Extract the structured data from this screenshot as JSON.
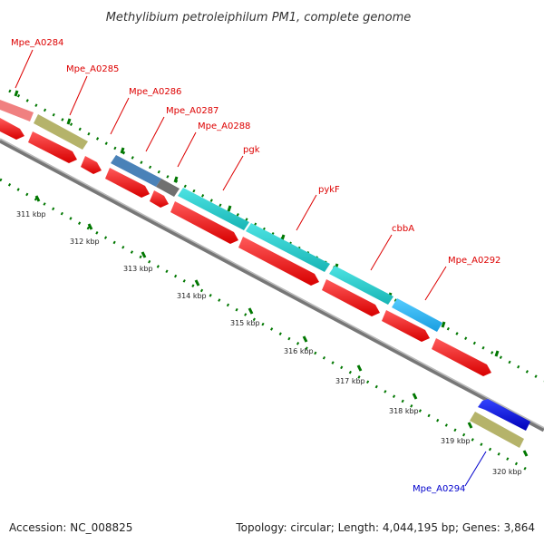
{
  "title": "Methylibium petroleiphilum PM1, complete genome",
  "footer": {
    "accession": "Accession: NC_008825",
    "summary": "Topology: circular; Length: 4,044,195 bp; Genes: 3,864"
  },
  "colors": {
    "forward_label": "#dd0000",
    "reverse_label": "#0000cc",
    "cds_arrow": "#ff0000",
    "backbone": "#999999",
    "tick": "#007700"
  },
  "gene_labels": [
    {
      "name": "Mpe_A0284",
      "strand": "forward"
    },
    {
      "name": "Mpe_A0285",
      "strand": "forward"
    },
    {
      "name": "Mpe_A0286",
      "strand": "forward"
    },
    {
      "name": "Mpe_A0287",
      "strand": "forward"
    },
    {
      "name": "Mpe_A0288",
      "strand": "forward"
    },
    {
      "name": "pgk",
      "strand": "forward"
    },
    {
      "name": "pykF",
      "strand": "forward"
    },
    {
      "name": "cbbA",
      "strand": "forward"
    },
    {
      "name": "Mpe_A0292",
      "strand": "forward"
    },
    {
      "name": "Mpe_A0294",
      "strand": "reverse"
    }
  ],
  "kbp_ticks": [
    "311 kbp",
    "312 kbp",
    "313 kbp",
    "314 kbp",
    "315 kbp",
    "316 kbp",
    "317 kbp",
    "318 kbp",
    "319 kbp",
    "320 kbp"
  ]
}
